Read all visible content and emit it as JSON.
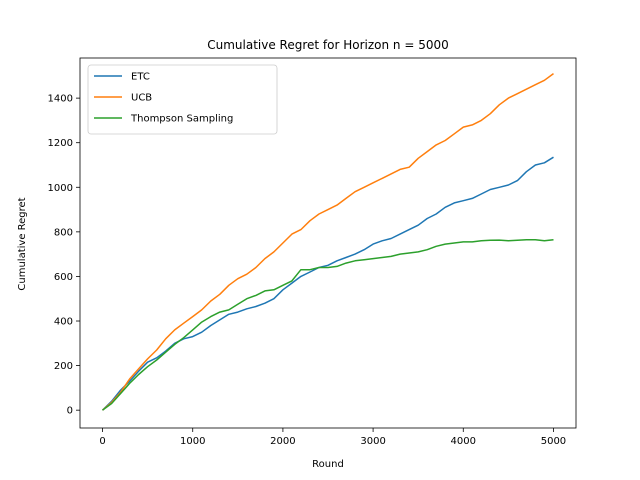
{
  "chart_data": {
    "type": "line",
    "title": "Cumulative Regret for Horizon n = 5000",
    "xlabel": "Round",
    "ylabel": "Cumulative Regret",
    "xlim": [
      -250,
      5250
    ],
    "ylim": [
      -80,
      1580
    ],
    "xticks": [
      0,
      1000,
      2000,
      3000,
      4000,
      5000
    ],
    "yticks": [
      0,
      200,
      400,
      600,
      800,
      1000,
      1200,
      1400
    ],
    "legend_position": "upper-left",
    "grid": false,
    "series": [
      {
        "name": "ETC",
        "color": "#1f77b4",
        "x": [
          0,
          100,
          200,
          300,
          400,
          500,
          600,
          700,
          800,
          900,
          1000,
          1100,
          1200,
          1300,
          1400,
          1500,
          1600,
          1700,
          1800,
          1900,
          2000,
          2100,
          2200,
          2300,
          2400,
          2500,
          2600,
          2700,
          2800,
          2900,
          3000,
          3100,
          3200,
          3300,
          3400,
          3500,
          3600,
          3700,
          3800,
          3900,
          4000,
          4100,
          4200,
          4300,
          4400,
          4500,
          4600,
          4700,
          4800,
          4900,
          5000
        ],
        "values": [
          0,
          40,
          90,
          130,
          175,
          215,
          235,
          265,
          300,
          320,
          330,
          350,
          380,
          405,
          430,
          440,
          455,
          465,
          480,
          500,
          540,
          570,
          600,
          620,
          640,
          650,
          670,
          685,
          700,
          720,
          745,
          760,
          770,
          790,
          810,
          830,
          860,
          880,
          910,
          930,
          940,
          950,
          970,
          990,
          1000,
          1010,
          1030,
          1070,
          1100,
          1110,
          1135
        ]
      },
      {
        "name": "UCB",
        "color": "#ff7f0e",
        "x": [
          0,
          100,
          200,
          300,
          400,
          500,
          600,
          700,
          800,
          900,
          1000,
          1100,
          1200,
          1300,
          1400,
          1500,
          1600,
          1700,
          1800,
          1900,
          2000,
          2100,
          2200,
          2300,
          2400,
          2500,
          2600,
          2700,
          2800,
          2900,
          3000,
          3100,
          3200,
          3300,
          3400,
          3500,
          3600,
          3700,
          3800,
          3900,
          4000,
          4100,
          4200,
          4300,
          4400,
          4500,
          4600,
          4700,
          4800,
          4900,
          5000
        ],
        "values": [
          0,
          35,
          80,
          140,
          185,
          230,
          270,
          320,
          360,
          390,
          420,
          450,
          490,
          520,
          560,
          590,
          610,
          640,
          680,
          710,
          750,
          790,
          810,
          850,
          880,
          900,
          920,
          950,
          980,
          1000,
          1020,
          1040,
          1060,
          1080,
          1090,
          1130,
          1160,
          1190,
          1210,
          1240,
          1270,
          1280,
          1300,
          1330,
          1370,
          1400,
          1420,
          1440,
          1460,
          1480,
          1510
        ]
      },
      {
        "name": "Thompson Sampling",
        "color": "#2ca02c",
        "x": [
          0,
          100,
          200,
          300,
          400,
          500,
          600,
          700,
          800,
          900,
          1000,
          1100,
          1200,
          1300,
          1400,
          1500,
          1600,
          1700,
          1800,
          1900,
          2000,
          2100,
          2200,
          2300,
          2400,
          2500,
          2600,
          2700,
          2800,
          2900,
          3000,
          3100,
          3200,
          3300,
          3400,
          3500,
          3600,
          3700,
          3800,
          3900,
          4000,
          4100,
          4200,
          4300,
          4400,
          4500,
          4600,
          4700,
          4800,
          4900,
          5000
        ],
        "values": [
          0,
          30,
          75,
          120,
          160,
          195,
          225,
          260,
          295,
          325,
          360,
          395,
          420,
          440,
          450,
          475,
          500,
          515,
          535,
          540,
          560,
          580,
          630,
          630,
          640,
          640,
          645,
          660,
          670,
          675,
          680,
          685,
          690,
          700,
          705,
          710,
          720,
          735,
          745,
          750,
          755,
          755,
          760,
          762,
          763,
          760,
          762,
          765,
          765,
          760,
          765
        ]
      }
    ]
  }
}
